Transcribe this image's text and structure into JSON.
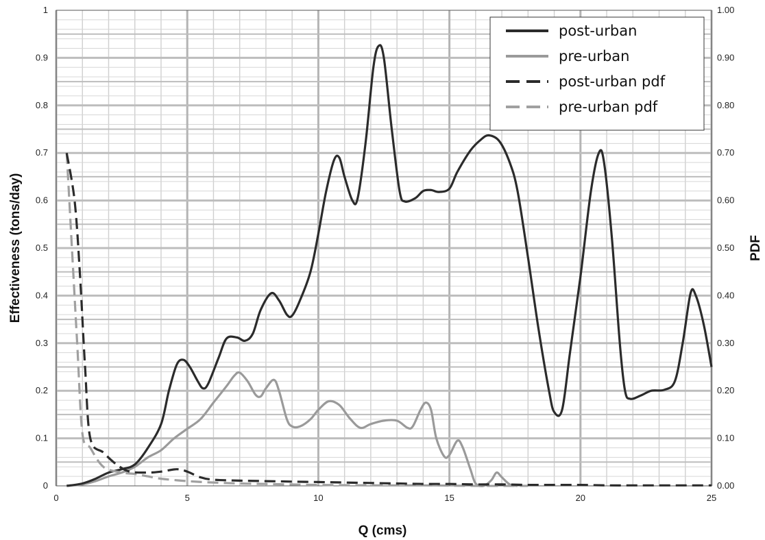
{
  "chart_data": {
    "type": "line",
    "title": "",
    "xlabel": "Q (cms)",
    "ylabel": "Effectiveness (tons/day)",
    "y2label": "PDF",
    "xlim": [
      0,
      25
    ],
    "ylim": [
      0,
      1
    ],
    "y2lim": [
      0,
      1
    ],
    "grid": true,
    "legend_position": "top-right",
    "x_ticks": [
      0,
      5,
      10,
      15,
      20,
      25
    ],
    "x_tick_labels": [
      "0",
      "5",
      "10",
      "15",
      "20",
      "25"
    ],
    "y_ticks": [
      0,
      0.1,
      0.2,
      0.3,
      0.4,
      0.5,
      0.6,
      0.7,
      0.8,
      0.9,
      1
    ],
    "y_tick_labels": [
      "0",
      "0.1",
      "0.2",
      "0.3",
      "0.4",
      "0.5",
      "0.6",
      "0.7",
      "0.8",
      "0.9",
      "1"
    ],
    "y2_ticks": [
      0,
      0.1,
      0.2,
      0.3,
      0.4,
      0.5,
      0.6,
      0.7,
      0.8,
      0.9,
      1
    ],
    "y2_tick_labels": [
      "0.00",
      "0.10",
      "0.20",
      "0.30",
      "0.40",
      "0.50",
      "0.60",
      "0.70",
      "0.80",
      "0.90",
      "1.00"
    ],
    "series": [
      {
        "name": "post-urban",
        "axis": "left",
        "color": "#2b2b2b",
        "style": "solid",
        "points": [
          [
            0.4,
            0.0
          ],
          [
            1.0,
            0.005
          ],
          [
            1.5,
            0.015
          ],
          [
            2.0,
            0.028
          ],
          [
            2.5,
            0.035
          ],
          [
            3.0,
            0.045
          ],
          [
            3.5,
            0.08
          ],
          [
            4.0,
            0.13
          ],
          [
            4.3,
            0.2
          ],
          [
            4.6,
            0.255
          ],
          [
            4.85,
            0.265
          ],
          [
            5.1,
            0.25
          ],
          [
            5.4,
            0.22
          ],
          [
            5.6,
            0.205
          ],
          [
            5.8,
            0.215
          ],
          [
            6.2,
            0.27
          ],
          [
            6.5,
            0.31
          ],
          [
            6.9,
            0.312
          ],
          [
            7.2,
            0.305
          ],
          [
            7.5,
            0.32
          ],
          [
            7.8,
            0.37
          ],
          [
            8.2,
            0.405
          ],
          [
            8.5,
            0.39
          ],
          [
            8.8,
            0.36
          ],
          [
            9.0,
            0.358
          ],
          [
            9.3,
            0.39
          ],
          [
            9.7,
            0.45
          ],
          [
            10.0,
            0.53
          ],
          [
            10.3,
            0.62
          ],
          [
            10.6,
            0.685
          ],
          [
            10.8,
            0.69
          ],
          [
            11.0,
            0.65
          ],
          [
            11.3,
            0.6
          ],
          [
            11.5,
            0.605
          ],
          [
            11.8,
            0.72
          ],
          [
            12.1,
            0.88
          ],
          [
            12.3,
            0.925
          ],
          [
            12.5,
            0.9
          ],
          [
            12.8,
            0.75
          ],
          [
            13.1,
            0.62
          ],
          [
            13.3,
            0.598
          ],
          [
            13.7,
            0.605
          ],
          [
            14.0,
            0.62
          ],
          [
            14.3,
            0.622
          ],
          [
            14.6,
            0.618
          ],
          [
            15.0,
            0.625
          ],
          [
            15.3,
            0.66
          ],
          [
            15.8,
            0.705
          ],
          [
            16.2,
            0.728
          ],
          [
            16.5,
            0.737
          ],
          [
            16.9,
            0.725
          ],
          [
            17.3,
            0.68
          ],
          [
            17.6,
            0.62
          ],
          [
            18.0,
            0.48
          ],
          [
            18.4,
            0.33
          ],
          [
            18.8,
            0.2
          ],
          [
            19.0,
            0.155
          ],
          [
            19.3,
            0.16
          ],
          [
            19.6,
            0.28
          ],
          [
            20.0,
            0.44
          ],
          [
            20.4,
            0.62
          ],
          [
            20.7,
            0.7
          ],
          [
            20.9,
            0.68
          ],
          [
            21.2,
            0.52
          ],
          [
            21.5,
            0.3
          ],
          [
            21.7,
            0.2
          ],
          [
            21.9,
            0.183
          ],
          [
            22.3,
            0.19
          ],
          [
            22.7,
            0.2
          ],
          [
            23.2,
            0.202
          ],
          [
            23.6,
            0.22
          ],
          [
            23.9,
            0.3
          ],
          [
            24.2,
            0.405
          ],
          [
            24.4,
            0.4
          ],
          [
            24.7,
            0.34
          ],
          [
            25.0,
            0.25
          ]
        ]
      },
      {
        "name": "pre-urban",
        "axis": "left",
        "color": "#9a9a9a",
        "style": "solid",
        "points": [
          [
            0.4,
            0.0
          ],
          [
            1.0,
            0.003
          ],
          [
            1.5,
            0.01
          ],
          [
            2.0,
            0.02
          ],
          [
            2.5,
            0.028
          ],
          [
            3.0,
            0.04
          ],
          [
            3.5,
            0.06
          ],
          [
            4.0,
            0.075
          ],
          [
            4.5,
            0.1
          ],
          [
            5.0,
            0.12
          ],
          [
            5.5,
            0.14
          ],
          [
            6.0,
            0.175
          ],
          [
            6.5,
            0.21
          ],
          [
            6.8,
            0.232
          ],
          [
            7.0,
            0.238
          ],
          [
            7.3,
            0.22
          ],
          [
            7.6,
            0.192
          ],
          [
            7.8,
            0.188
          ],
          [
            8.0,
            0.205
          ],
          [
            8.3,
            0.223
          ],
          [
            8.5,
            0.2
          ],
          [
            8.8,
            0.14
          ],
          [
            9.0,
            0.125
          ],
          [
            9.3,
            0.125
          ],
          [
            9.7,
            0.14
          ],
          [
            10.0,
            0.16
          ],
          [
            10.4,
            0.178
          ],
          [
            10.8,
            0.17
          ],
          [
            11.2,
            0.142
          ],
          [
            11.6,
            0.122
          ],
          [
            12.0,
            0.13
          ],
          [
            12.5,
            0.137
          ],
          [
            13.0,
            0.137
          ],
          [
            13.4,
            0.122
          ],
          [
            13.6,
            0.125
          ],
          [
            13.9,
            0.16
          ],
          [
            14.1,
            0.175
          ],
          [
            14.3,
            0.16
          ],
          [
            14.5,
            0.1
          ],
          [
            14.8,
            0.062
          ],
          [
            15.0,
            0.065
          ],
          [
            15.3,
            0.095
          ],
          [
            15.5,
            0.082
          ],
          [
            15.8,
            0.035
          ],
          [
            16.0,
            0.005
          ],
          [
            16.3,
            0.0
          ],
          [
            16.6,
            0.012
          ],
          [
            16.8,
            0.028
          ],
          [
            17.0,
            0.018
          ],
          [
            17.3,
            0.003
          ],
          [
            17.6,
            0.0
          ]
        ]
      },
      {
        "name": "post-urban pdf",
        "axis": "right",
        "color": "#2b2b2b",
        "style": "dashed",
        "points": [
          [
            0.4,
            0.7
          ],
          [
            0.7,
            0.6
          ],
          [
            0.9,
            0.45
          ],
          [
            1.1,
            0.25
          ],
          [
            1.3,
            0.1
          ],
          [
            1.8,
            0.07
          ],
          [
            2.3,
            0.045
          ],
          [
            2.8,
            0.03
          ],
          [
            3.5,
            0.028
          ],
          [
            4.0,
            0.03
          ],
          [
            4.6,
            0.035
          ],
          [
            5.0,
            0.03
          ],
          [
            5.5,
            0.018
          ],
          [
            6.0,
            0.013
          ],
          [
            7.0,
            0.011
          ],
          [
            8.0,
            0.01
          ],
          [
            9.0,
            0.009
          ],
          [
            10.0,
            0.008
          ],
          [
            11.0,
            0.007
          ],
          [
            12.0,
            0.006
          ],
          [
            13.0,
            0.005
          ],
          [
            14.0,
            0.004
          ],
          [
            15.0,
            0.004
          ],
          [
            16.0,
            0.003
          ],
          [
            17.0,
            0.003
          ],
          [
            18.0,
            0.002
          ],
          [
            19.0,
            0.002
          ],
          [
            20.0,
            0.002
          ],
          [
            21.0,
            0.001
          ],
          [
            22.0,
            0.001
          ],
          [
            23.0,
            0.001
          ],
          [
            24.0,
            0.001
          ],
          [
            25.0,
            0.001
          ]
        ]
      },
      {
        "name": "pre-urban pdf",
        "axis": "right",
        "color": "#a0a0a0",
        "style": "dashed",
        "points": [
          [
            0.4,
            0.7
          ],
          [
            0.6,
            0.5
          ],
          [
            0.8,
            0.3
          ],
          [
            1.0,
            0.11
          ],
          [
            1.3,
            0.08
          ],
          [
            1.8,
            0.04
          ],
          [
            2.5,
            0.028
          ],
          [
            3.0,
            0.025
          ],
          [
            3.5,
            0.02
          ],
          [
            4.0,
            0.015
          ],
          [
            5.0,
            0.01
          ],
          [
            6.0,
            0.007
          ],
          [
            7.0,
            0.005
          ],
          [
            8.0,
            0.004
          ],
          [
            10.0,
            0.002
          ],
          [
            12.0,
            0.001
          ],
          [
            14.0,
            0.001
          ],
          [
            16.0,
            0.0
          ],
          [
            18.0,
            0.0
          ]
        ]
      }
    ]
  }
}
